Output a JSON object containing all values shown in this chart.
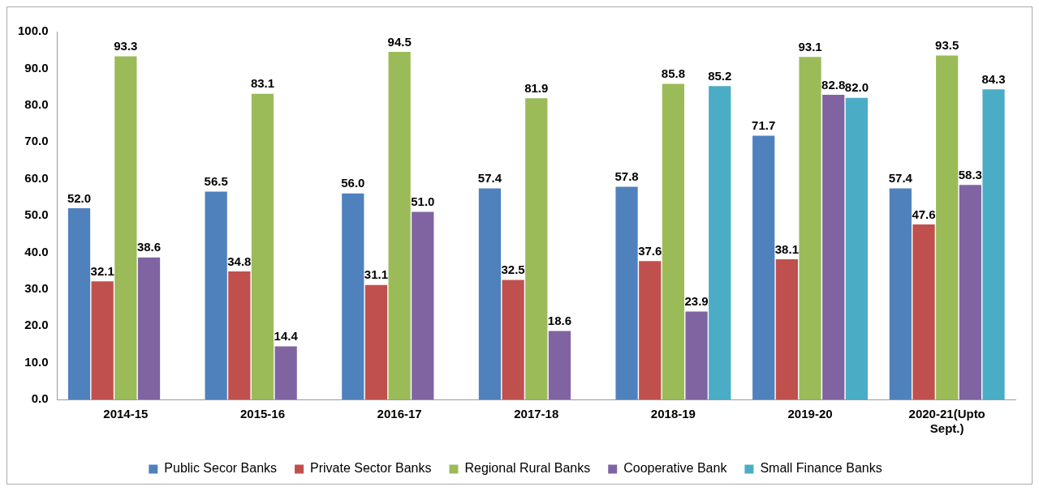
{
  "chart_data": {
    "type": "bar",
    "categories": [
      "2014-15",
      "2015-16",
      "2016-17",
      "2017-18",
      "2018-19",
      "2019-20",
      "2020-21(Upto Sept.)"
    ],
    "series": [
      {
        "name": "Public Secor Banks",
        "color": "#4f81bd",
        "values": [
          52.0,
          56.5,
          56.0,
          57.4,
          57.8,
          71.7,
          57.4
        ],
        "value_labels": [
          "52.0",
          "56.5",
          "56.0",
          "57.4",
          "57.8",
          "71.7",
          "57.4"
        ]
      },
      {
        "name": "Private Sector Banks",
        "color": "#c0504d",
        "values": [
          32.1,
          34.8,
          31.1,
          32.5,
          37.6,
          38.1,
          47.6
        ],
        "value_labels": [
          "32.1",
          "34.8",
          "31.1",
          "32.5",
          "37.6",
          "38.1",
          "47.6"
        ]
      },
      {
        "name": "Regional Rural Banks",
        "color": "#9bbb59",
        "values": [
          93.3,
          83.1,
          94.5,
          81.9,
          85.8,
          93.1,
          93.5
        ],
        "value_labels": [
          "93.3",
          "83.1",
          "94.5",
          "81.9",
          "85.8",
          "93.1",
          "93.5"
        ]
      },
      {
        "name": "Cooperative Bank",
        "color": "#8064a2",
        "values": [
          38.6,
          14.4,
          51.0,
          18.6,
          23.9,
          82.8,
          58.3
        ],
        "value_labels": [
          "38.6",
          "14.4",
          "51.0",
          "18.6",
          "23.9",
          "82.8",
          "58.3"
        ]
      },
      {
        "name": "Small Finance Banks",
        "color": "#4bacc6",
        "values": [
          null,
          null,
          null,
          null,
          85.2,
          82.0,
          84.3
        ],
        "value_labels": [
          null,
          null,
          null,
          null,
          "85.2",
          "82.0",
          "84.3"
        ]
      }
    ],
    "ylim": [
      0,
      100
    ],
    "yticks": [
      {
        "value": 0,
        "label": "0.0"
      },
      {
        "value": 10,
        "label": "10.0"
      },
      {
        "value": 20,
        "label": "20.0"
      },
      {
        "value": 30,
        "label": "30.0"
      },
      {
        "value": 40,
        "label": "40.0"
      },
      {
        "value": 50,
        "label": "50.0"
      },
      {
        "value": 60,
        "label": "60.0"
      },
      {
        "value": 70,
        "label": "70.0"
      },
      {
        "value": 80,
        "label": "80.0"
      },
      {
        "value": 90,
        "label": "90.0"
      },
      {
        "value": 100,
        "label": "100.0"
      }
    ],
    "grid": false,
    "legend": "bottom"
  }
}
